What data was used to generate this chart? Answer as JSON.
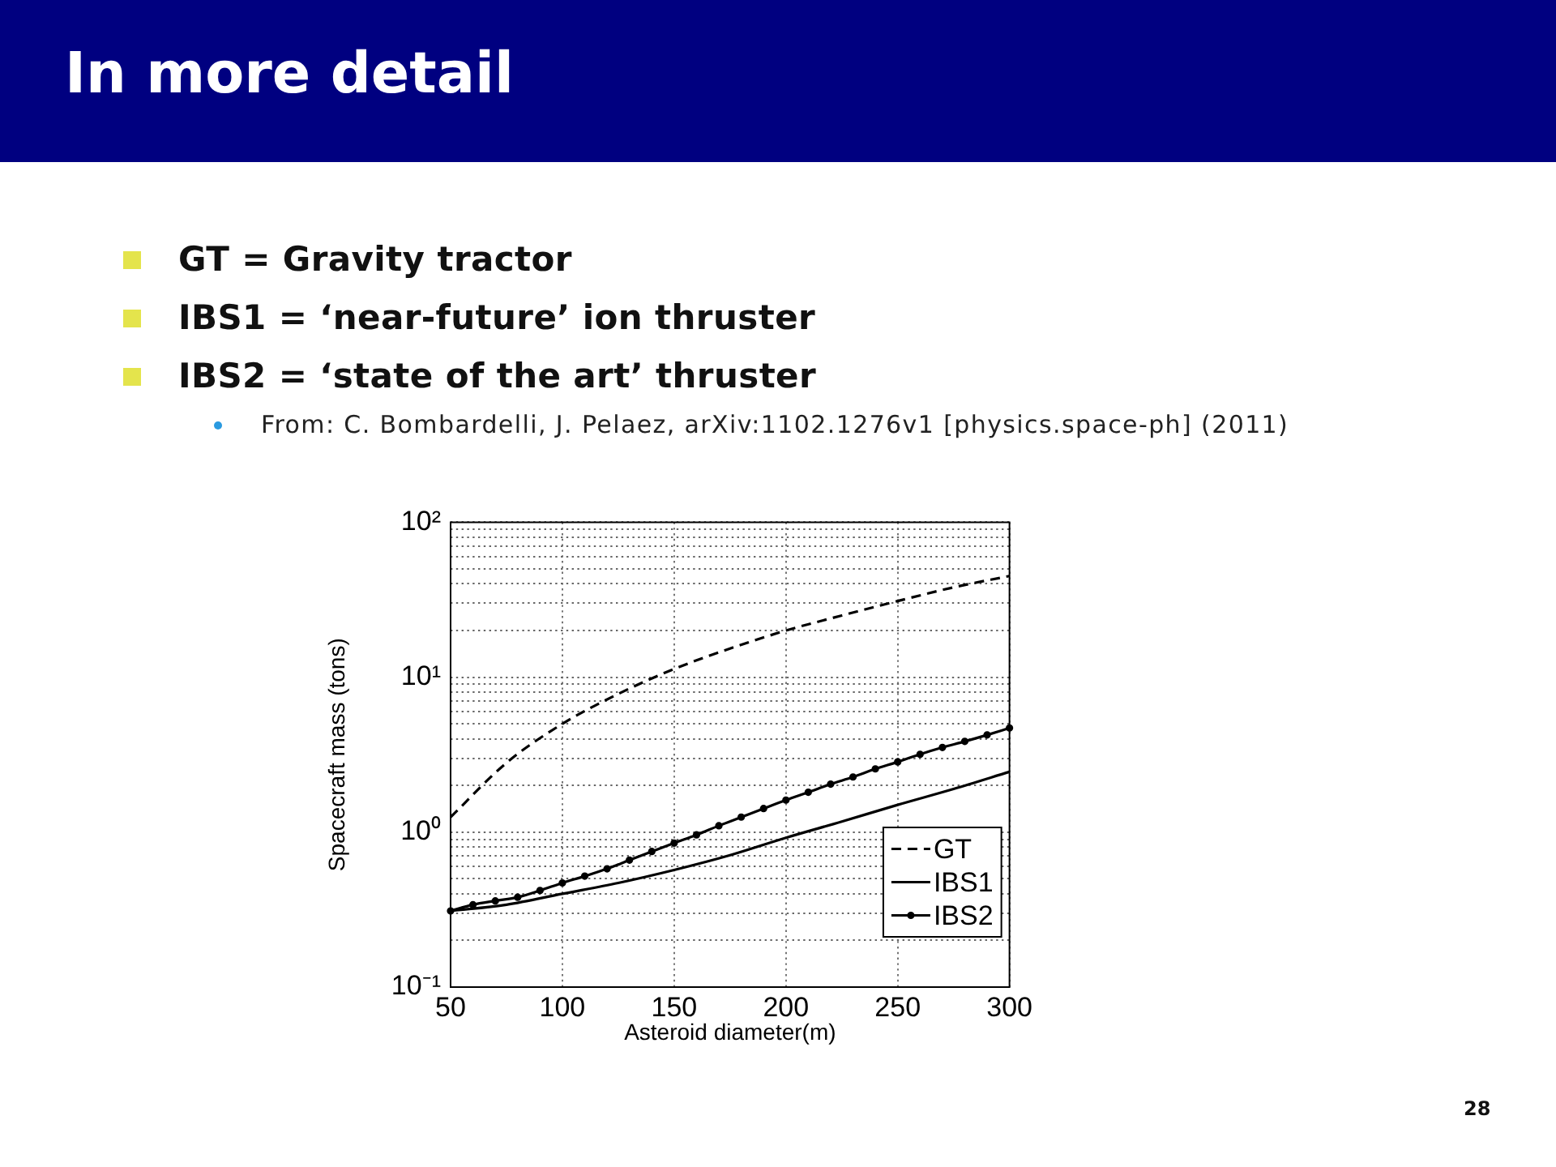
{
  "chart_data": {
    "type": "line",
    "title": "In more detail",
    "annotations": [
      "GT = Gravity tractor",
      "IBS1 = ‘near-future’ ion thruster",
      "IBS2 = ‘state of the art’ thruster",
      "From: C. Bombardelli, J. Pelaez, arXiv:1102.1276v1 [physics.space-ph] (2011)",
      "28"
    ],
    "xlabel": "Asteroid diameter(m)",
    "ylabel": "Spacecraft mass (tons)",
    "log": "y",
    "grid": true,
    "legend": "bottom right",
    "xlim": [
      50,
      300
    ],
    "xticks": [
      50,
      100,
      150,
      200,
      250,
      300
    ],
    "ylim": [
      0.1,
      100
    ],
    "yticks": [
      {
        "value": 0.1,
        "label": "10⁻¹"
      },
      {
        "value": 0.2,
        "label": null
      },
      {
        "value": 0.3,
        "label": null
      },
      {
        "value": 0.4,
        "label": null
      },
      {
        "value": 0.5,
        "label": null
      },
      {
        "value": 0.6,
        "label": null
      },
      {
        "value": 0.7,
        "label": null
      },
      {
        "value": 0.8,
        "label": null
      },
      {
        "value": 0.9,
        "label": null
      },
      {
        "value": 1,
        "label": "10⁰"
      },
      {
        "value": 2,
        "label": null
      },
      {
        "value": 3,
        "label": null
      },
      {
        "value": 4,
        "label": null
      },
      {
        "value": 5,
        "label": null
      },
      {
        "value": 6,
        "label": null
      },
      {
        "value": 7,
        "label": null
      },
      {
        "value": 8,
        "label": null
      },
      {
        "value": 9,
        "label": null
      },
      {
        "value": 10,
        "label": "10¹"
      },
      {
        "value": 20,
        "label": null
      },
      {
        "value": 30,
        "label": null
      },
      {
        "value": 40,
        "label": null
      },
      {
        "value": 50,
        "label": null
      },
      {
        "value": 60,
        "label": null
      },
      {
        "value": 70,
        "label": null
      },
      {
        "value": 80,
        "label": null
      },
      {
        "value": 90,
        "label": null
      },
      {
        "value": 100,
        "label": "10²"
      }
    ],
    "series": [
      {
        "name": "GT",
        "color": "#000000",
        "line_style": "dashed",
        "marker": "none",
        "x": [
          50,
          75,
          100,
          125,
          150,
          175,
          200,
          225,
          250,
          275,
          300
        ],
        "values": [
          1.25,
          2.8,
          5,
          7.8,
          11.3,
          15.3,
          20,
          25,
          31,
          38,
          45
        ]
      },
      {
        "name": "IBS1",
        "color": "#000000",
        "line_style": "solid",
        "marker": "none",
        "x": [
          50,
          75,
          100,
          125,
          150,
          175,
          200,
          225,
          250,
          275,
          300
        ],
        "values": [
          0.31,
          0.34,
          0.4,
          0.47,
          0.57,
          0.71,
          0.92,
          1.17,
          1.5,
          1.9,
          2.45
        ]
      },
      {
        "name": "IBS2",
        "color": "#000000",
        "line_style": "solid",
        "marker": "circle",
        "x": [
          50,
          60,
          70,
          80,
          90,
          100,
          110,
          120,
          130,
          140,
          150,
          160,
          170,
          180,
          190,
          200,
          210,
          220,
          230,
          240,
          250,
          260,
          270,
          280,
          290,
          300
        ],
        "values": [
          0.31,
          0.34,
          0.36,
          0.38,
          0.42,
          0.47,
          0.52,
          0.58,
          0.66,
          0.75,
          0.85,
          0.96,
          1.1,
          1.25,
          1.42,
          1.61,
          1.81,
          2.04,
          2.27,
          2.56,
          2.84,
          3.18,
          3.52,
          3.85,
          4.24,
          4.7
        ]
      }
    ]
  }
}
